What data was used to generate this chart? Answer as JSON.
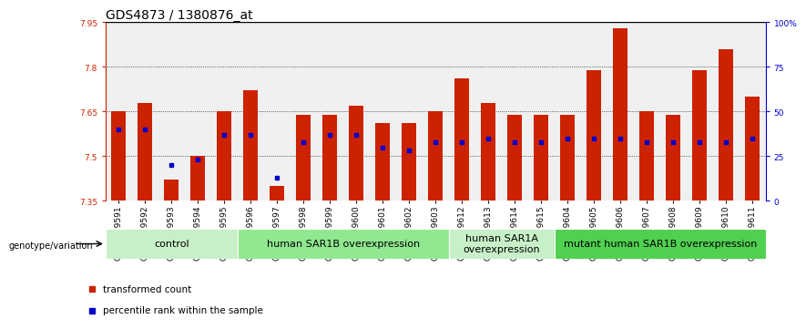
{
  "title": "GDS4873 / 1380876_at",
  "samples": [
    "GSM1279591",
    "GSM1279592",
    "GSM1279593",
    "GSM1279594",
    "GSM1279595",
    "GSM1279596",
    "GSM1279597",
    "GSM1279598",
    "GSM1279599",
    "GSM1279600",
    "GSM1279601",
    "GSM1279602",
    "GSM1279603",
    "GSM1279612",
    "GSM1279613",
    "GSM1279614",
    "GSM1279615",
    "GSM1279604",
    "GSM1279605",
    "GSM1279606",
    "GSM1279607",
    "GSM1279608",
    "GSM1279609",
    "GSM1279610",
    "GSM1279611"
  ],
  "transformed_counts": [
    7.65,
    7.68,
    7.42,
    7.5,
    7.65,
    7.72,
    7.4,
    7.64,
    7.64,
    7.67,
    7.61,
    7.61,
    7.65,
    7.76,
    7.68,
    7.64,
    7.64,
    7.64,
    7.79,
    7.93,
    7.65,
    7.64,
    7.79,
    7.86,
    7.7
  ],
  "percentile_ranks_pct": [
    40,
    40,
    20,
    23,
    37,
    37,
    13,
    33,
    37,
    37,
    30,
    28,
    33,
    33,
    35,
    33,
    33,
    35,
    35,
    35,
    33,
    33,
    33,
    33,
    35
  ],
  "groups": [
    {
      "label": "control",
      "start": 0,
      "end": 5,
      "color": "#c8f0c8"
    },
    {
      "label": "human SAR1B overexpression",
      "start": 5,
      "end": 13,
      "color": "#90e890"
    },
    {
      "label": "human SAR1A\noverexpression",
      "start": 13,
      "end": 17,
      "color": "#c8f0c8"
    },
    {
      "label": "mutant human SAR1B overexpression",
      "start": 17,
      "end": 25,
      "color": "#50d050"
    }
  ],
  "ylim_left": [
    7.35,
    7.95
  ],
  "yticks_left": [
    7.35,
    7.5,
    7.65,
    7.8,
    7.95
  ],
  "yticks_right_vals": [
    0,
    25,
    50,
    75,
    100
  ],
  "yticks_right_labels": [
    "0",
    "25",
    "50",
    "75",
    "100%"
  ],
  "bar_color": "#cc2200",
  "percentile_color": "#0000cc",
  "bar_width": 0.55,
  "legend_items": [
    {
      "label": "transformed count",
      "color": "#cc2200"
    },
    {
      "label": "percentile rank within the sample",
      "color": "#0000cc"
    }
  ],
  "genotype_label": "genotype/variation",
  "left_axis_color": "#cc2200",
  "right_axis_color": "#0000cc",
  "title_fontsize": 10,
  "tick_fontsize": 6.5,
  "group_fontsize": 8,
  "legend_fontsize": 7.5,
  "bg_color": "#f0f0f0"
}
